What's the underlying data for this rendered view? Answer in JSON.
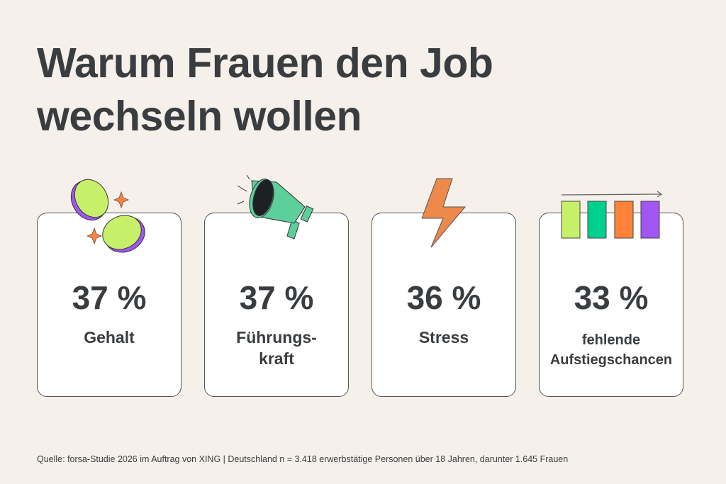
{
  "title": {
    "line1": "Warum Frauen den Job",
    "line2": "wechseln wollen"
  },
  "cards": [
    {
      "value": "37 %",
      "label": "Gehalt",
      "icon": "coins-icon"
    },
    {
      "value": "37 %",
      "label_line1": "Führungs-",
      "label_line2": "kraft",
      "icon": "megaphone-icon"
    },
    {
      "value": "36 %",
      "label": "Stress",
      "icon": "lightning-icon"
    },
    {
      "value": "33 %",
      "label_line1": "fehlende",
      "label_line2": "Aufstiegschancen",
      "icon": "bars-arrow-icon"
    }
  ],
  "source": "Quelle: forsa-Studie 2026 im Auftrag von XING | Deutschland n = 3.418 erwerbstätige Personen über 18 Jahren, darunter 1.645 Frauen",
  "colors": {
    "background": "#f5f0ea",
    "lime": "#c7ef6a",
    "purple": "#a155f2",
    "green": "#00d08e",
    "orange": "#ff8238",
    "megaphone": "#5ccf9b"
  }
}
